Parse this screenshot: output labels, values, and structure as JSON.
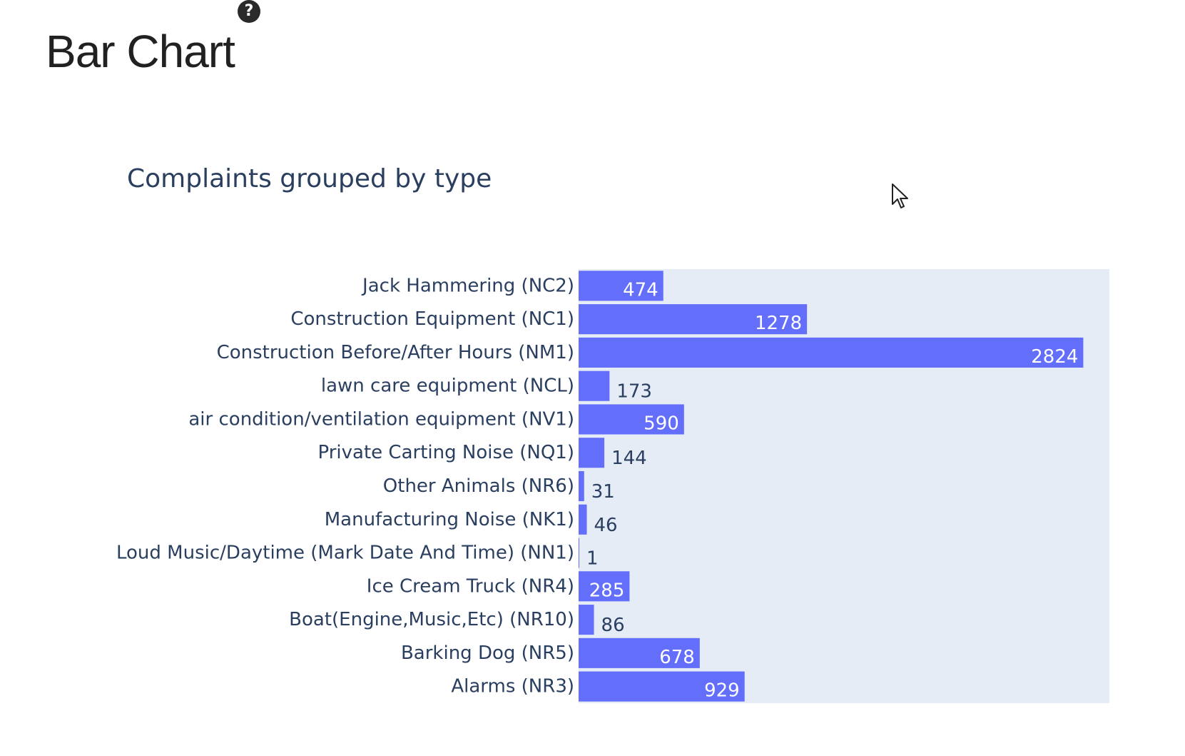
{
  "page": {
    "heading": "Bar Chart",
    "help_icon": "question-circle-icon",
    "help_glyph": "?"
  },
  "colors": {
    "bar": "#636efa",
    "plot_bg": "#e5ecf6",
    "text": "#2a3f5f",
    "heading": "#212121",
    "label_inside": "#ffffff"
  },
  "chart_data": {
    "type": "bar",
    "orientation": "horizontal",
    "title": "Complaints grouped by type",
    "xlabel": "",
    "ylabel": "",
    "xlim": [
      0,
      2970
    ],
    "grid": false,
    "legend": "none",
    "categories": [
      "Jack Hammering (NC2)",
      "Construction Equipment (NC1)",
      "Construction Before/After Hours (NM1)",
      "lawn care equipment (NCL)",
      "air condition/ventilation equipment (NV1)",
      "Private Carting Noise (NQ1)",
      "Other Animals (NR6)",
      "Manufacturing Noise (NK1)",
      "Loud Music/Daytime (Mark Date And Time) (NN1)",
      "Ice Cream Truck (NR4)",
      "Boat(Engine,Music,Etc) (NR10)",
      "Barking Dog (NR5)",
      "Alarms (NR3)"
    ],
    "values": [
      474,
      1278,
      2824,
      173,
      590,
      144,
      31,
      46,
      1,
      285,
      86,
      678,
      929
    ]
  }
}
